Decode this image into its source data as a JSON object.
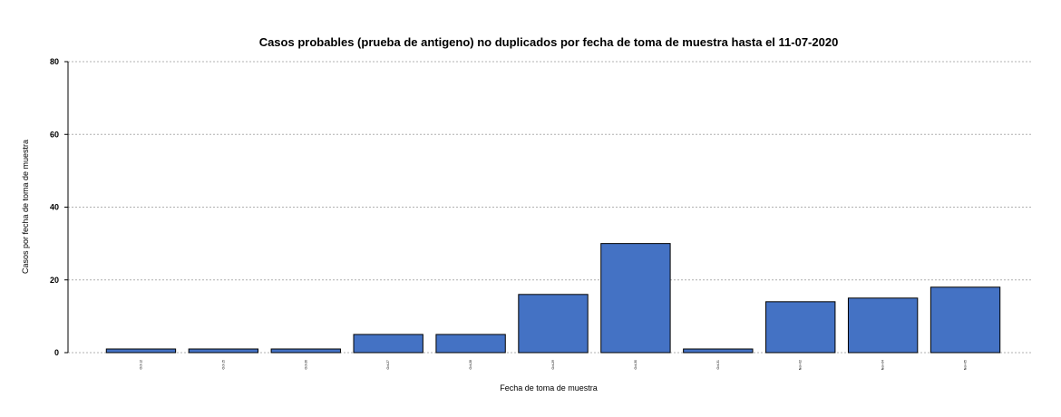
{
  "chart_data": {
    "type": "bar",
    "title": "Casos probables (prueba de antigeno) no duplicados por fecha de toma de muestra hasta el 11-07-2020",
    "xlabel": "Fecha de toma de muestra",
    "ylabel": "Casos por fecha de toma de muestra",
    "categories": [
      "Oct-12",
      "Oct-15",
      "Oct-26",
      "Oct-27",
      "Oct-28",
      "Oct-29",
      "Oct-30",
      "Oct-31",
      "Nov-02",
      "Nov-04",
      "Nov-05"
    ],
    "values": [
      1,
      1,
      1,
      5,
      5,
      16,
      30,
      1,
      14,
      15,
      18
    ],
    "ylim": [
      0,
      80
    ],
    "yticks": [
      0,
      20,
      40,
      60,
      80
    ],
    "grid": true,
    "bar_color": "#4472C4"
  }
}
